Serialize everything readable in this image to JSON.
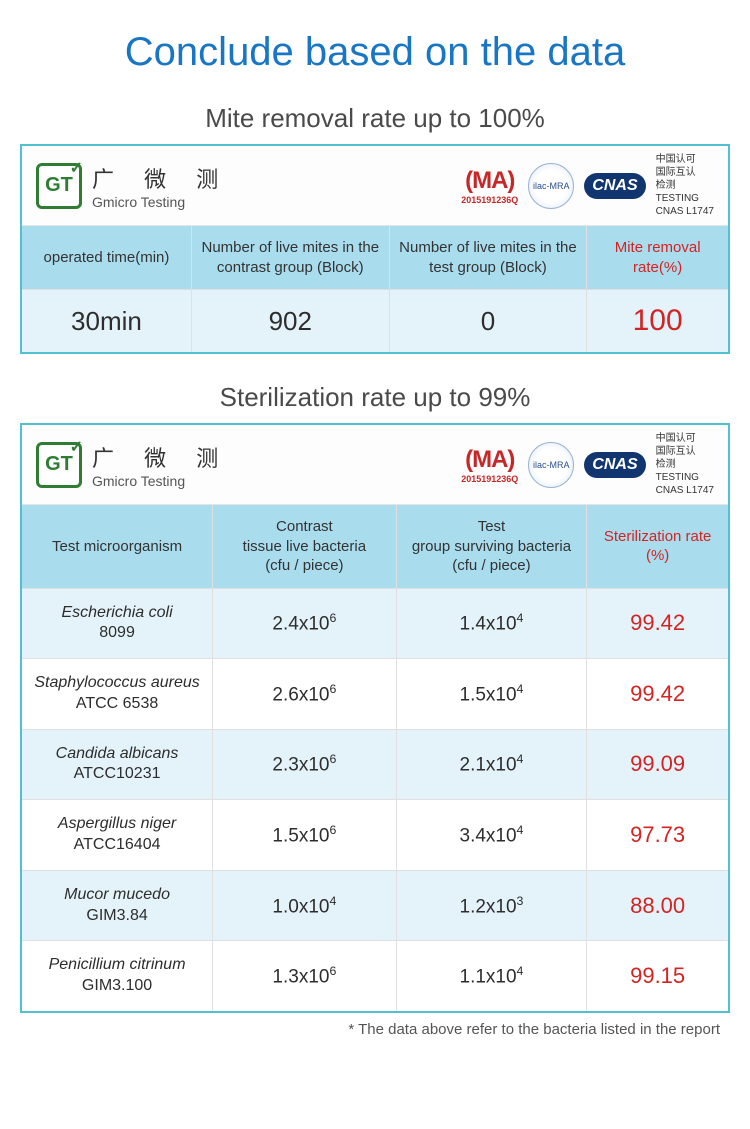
{
  "colors": {
    "title": "#1976c4",
    "accent_red": "#d32424",
    "panel_border": "#4fc1d0",
    "header_row_bg": "#a9dced",
    "row_alt_bg": "#e4f3fa",
    "row_bg": "#ffffff"
  },
  "page": {
    "title": "Conclude based on the data",
    "footnote": "* The data above refer to the bacteria listed in the report"
  },
  "cert": {
    "gt_letters": "GT",
    "gt_cn": "广 微 测",
    "gt_en": "Gmicro Testing",
    "ma": "(MA)",
    "ma_code": "2015191236Q",
    "ilac": "ilac-MRA",
    "cnas": "CNAS",
    "caption": "中国认可\n国际互认\n检测\nTESTING\nCNAS L1747"
  },
  "mite": {
    "section_title": "Mite removal rate up to 100%",
    "headers": [
      "operated time(min)",
      "Number of live mites in the contrast group (Block)",
      "Number of live mites in the test group (Block)",
      "Mite removal rate(%)"
    ],
    "row": {
      "time": "30min",
      "contrast": "902",
      "test": "0",
      "rate": "100"
    },
    "col_widths": [
      "24%",
      "28%",
      "28%",
      "20%"
    ]
  },
  "ster": {
    "section_title": "Sterilization rate up to 99%",
    "headers": [
      "Test microorganism",
      "Contrast\ntissue live bacteria\n(cfu / piece)",
      "Test\ngroup surviving bacteria\n(cfu / piece)",
      "Sterilization rate (%)"
    ],
    "col_widths": [
      "27%",
      "26%",
      "27%",
      "20%"
    ],
    "rows": [
      {
        "name": "Escherichia coli",
        "sub": "8099",
        "contrast_m": "2.4",
        "contrast_e": "6",
        "test_m": "1.4",
        "test_e": "4",
        "rate": "99.42"
      },
      {
        "name": "Staphylococcus aureus",
        "sub": "ATCC 6538",
        "contrast_m": "2.6",
        "contrast_e": "6",
        "test_m": "1.5",
        "test_e": "4",
        "rate": "99.42"
      },
      {
        "name": "Candida albicans",
        "sub": "ATCC10231",
        "contrast_m": "2.3",
        "contrast_e": "6",
        "test_m": "2.1",
        "test_e": "4",
        "rate": "99.09"
      },
      {
        "name": "Aspergillus niger",
        "sub": "ATCC16404",
        "contrast_m": "1.5",
        "contrast_e": "6",
        "test_m": "3.4",
        "test_e": "4",
        "rate": "97.73"
      },
      {
        "name": "Mucor mucedo",
        "sub": "GIM3.84",
        "contrast_m": "1.0",
        "contrast_e": "4",
        "test_m": "1.2",
        "test_e": "3",
        "rate": "88.00"
      },
      {
        "name": "Penicillium citrinum",
        "sub": "GIM3.100",
        "contrast_m": "1.3",
        "contrast_e": "6",
        "test_m": "1.1",
        "test_e": "4",
        "rate": "99.15"
      }
    ]
  }
}
